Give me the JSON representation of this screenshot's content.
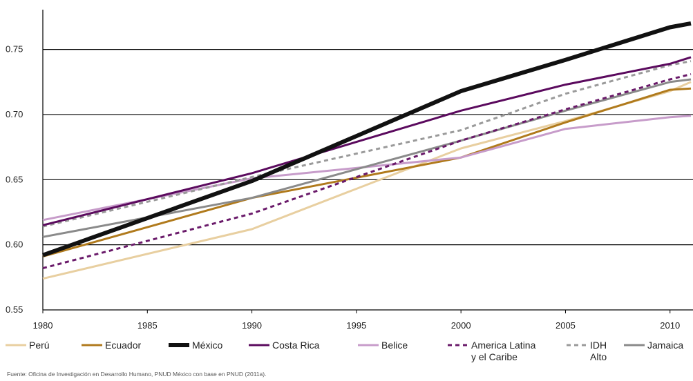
{
  "chart_data": {
    "type": "line",
    "title": "",
    "xlabel": "",
    "ylabel": "",
    "x": [
      1980,
      1990,
      2000,
      2005,
      2010,
      2011
    ],
    "xticks": [
      "1980",
      "1985",
      "1990",
      "1995",
      "2000",
      "2005",
      "2010"
    ],
    "yticks": [
      "0.55",
      "0.60",
      "0.65",
      "0.70",
      "0.75"
    ],
    "xlim": [
      1980,
      2011
    ],
    "ylim": [
      0.55,
      0.78
    ],
    "grid": "horizontal",
    "legend_position": "bottom",
    "series": [
      {
        "name": "Perú",
        "legend_lines": [
          "Perú"
        ],
        "color": "#e8cfa0",
        "width": 3,
        "dash": "",
        "values": [
          0.574,
          0.612,
          0.674,
          0.695,
          0.718,
          0.725
        ]
      },
      {
        "name": "Ecuador",
        "legend_lines": [
          "Ecuador"
        ],
        "color": "#b07a1c",
        "width": 3,
        "dash": "",
        "values": [
          0.591,
          0.636,
          0.667,
          0.694,
          0.719,
          0.72
        ]
      },
      {
        "name": "Belice",
        "legend_lines": [
          "Belice"
        ],
        "color": "#c79cca",
        "width": 3,
        "dash": "",
        "values": [
          0.619,
          0.651,
          0.667,
          0.689,
          0.698,
          0.699
        ]
      },
      {
        "name": "Jamaica",
        "legend_lines": [
          "Jamaica"
        ],
        "color": "#8a8a8a",
        "width": 3,
        "dash": "",
        "values": [
          0.606,
          0.636,
          0.68,
          0.703,
          0.725,
          0.727
        ]
      },
      {
        "name": "America Latina y el Caribe",
        "legend_lines": [
          "America Latina",
          "y el Caribe"
        ],
        "color": "#6a1a6a",
        "width": 3,
        "dash": "6,5",
        "values": [
          0.582,
          0.624,
          0.68,
          0.704,
          0.727,
          0.731
        ]
      },
      {
        "name": "IDH Alto",
        "legend_lines": [
          "IDH",
          "Alto"
        ],
        "color": "#9a9a9a",
        "width": 3,
        "dash": "6,5",
        "values": [
          0.614,
          0.652,
          0.688,
          0.716,
          0.738,
          0.741
        ]
      },
      {
        "name": "Costa Rica",
        "legend_lines": [
          "Costa Rica"
        ],
        "color": "#5b0a5e",
        "width": 3,
        "dash": "",
        "values": [
          0.615,
          0.655,
          0.703,
          0.723,
          0.739,
          0.744
        ]
      },
      {
        "name": "México",
        "legend_lines": [
          "México"
        ],
        "color": "#111111",
        "width": 6,
        "dash": "",
        "values": [
          0.592,
          0.649,
          0.718,
          0.742,
          0.767,
          0.77
        ]
      }
    ],
    "legend_order": [
      "Perú",
      "Ecuador",
      "México",
      "Costa Rica",
      "Belice",
      "America Latina y el Caribe",
      "IDH Alto",
      "Jamaica"
    ]
  },
  "source_note": "Fuente: Oficina de Investigación en Desarrollo Humano, PNUD México con base en PNUD (2011a)."
}
